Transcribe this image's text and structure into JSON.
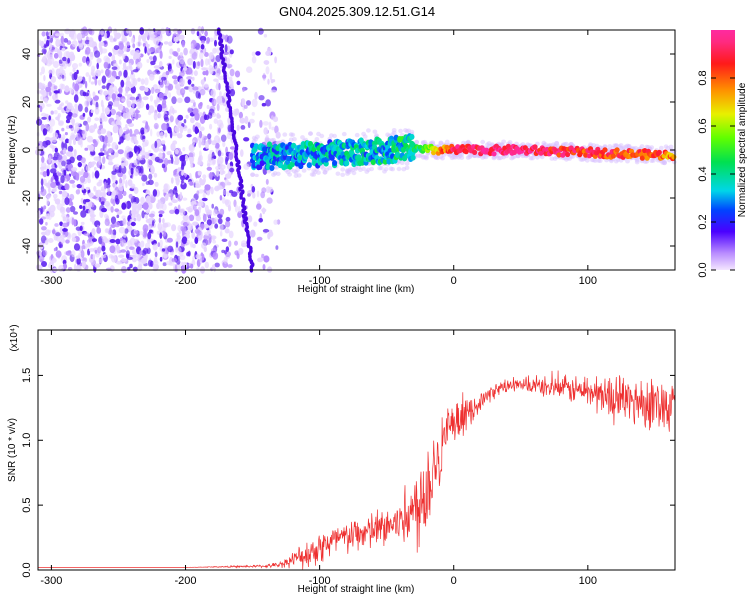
{
  "title": "GN04.2025.309.12.51.G14",
  "chart_data": [
    {
      "type": "heatmap",
      "xlabel": "Height of straight line (km)",
      "ylabel": "Frequency (Hz)",
      "xlim": [
        -310,
        165
      ],
      "ylim": [
        -50,
        50
      ],
      "xticks": [
        -300,
        -200,
        -100,
        0,
        100
      ],
      "yticks": [
        -40,
        -20,
        0,
        20,
        40
      ],
      "colorbar": {
        "label": "Normalized spectral amplitude",
        "range": [
          0,
          1
        ],
        "ticks": [
          "0.0",
          "0.2",
          "0.4",
          "0.6",
          "0.8"
        ]
      },
      "features": {
        "noise_region_x": [
          -310,
          -145
        ],
        "diagonal_streak": {
          "x_top": -175,
          "y_top": 50,
          "x_bottom": -150,
          "y_bottom": -50
        },
        "signal_band": {
          "x": [
            -150,
            -130,
            -110,
            -90,
            -70,
            -50,
            -35,
            -25,
            0,
            25,
            50,
            75,
            100,
            125,
            150,
            165
          ],
          "y": [
            -3,
            -2.5,
            -2,
            -1.5,
            -1,
            0,
            1,
            0,
            0,
            0,
            0,
            -0.5,
            -1,
            -1.5,
            -2,
            -2
          ],
          "amplitude": [
            0.3,
            0.3,
            0.32,
            0.33,
            0.33,
            0.35,
            0.4,
            0.45,
            0.9,
            0.95,
            0.95,
            0.9,
            0.85,
            0.85,
            0.8,
            0.75
          ]
        }
      }
    },
    {
      "type": "line",
      "xlabel": "Height of straight line (km)",
      "ylabel": "SNR (10 * v/v)",
      "multiplier": "(x10⁴)",
      "xlim": [
        -310,
        165
      ],
      "ylim": [
        0,
        1.85
      ],
      "xticks": [
        -300,
        -200,
        -100,
        0,
        100
      ],
      "yticks": [
        "0.0",
        "0.5",
        "1.0",
        "1.5"
      ],
      "color": "#ee3030",
      "envelope": {
        "x": [
          -310,
          -200,
          -140,
          -130,
          -120,
          -110,
          -100,
          -90,
          -80,
          -70,
          -60,
          -50,
          -40,
          -30,
          -25,
          -20,
          -15,
          -10,
          -5,
          0,
          10,
          20,
          30,
          40,
          60,
          80,
          100,
          120,
          140,
          165
        ],
        "y": [
          0.02,
          0.02,
          0.03,
          0.04,
          0.08,
          0.12,
          0.18,
          0.22,
          0.25,
          0.28,
          0.3,
          0.33,
          0.38,
          0.45,
          0.55,
          0.65,
          0.8,
          0.95,
          1.05,
          1.1,
          1.2,
          1.3,
          1.38,
          1.42,
          1.42,
          1.4,
          1.38,
          1.32,
          1.3,
          1.28
        ],
        "noise": [
          0.0,
          0.0,
          0.01,
          0.02,
          0.05,
          0.1,
          0.12,
          0.12,
          0.12,
          0.12,
          0.14,
          0.15,
          0.18,
          0.25,
          0.35,
          0.35,
          0.3,
          0.25,
          0.2,
          0.15,
          0.1,
          0.06,
          0.05,
          0.05,
          0.06,
          0.08,
          0.12,
          0.16,
          0.18,
          0.18
        ]
      }
    }
  ]
}
